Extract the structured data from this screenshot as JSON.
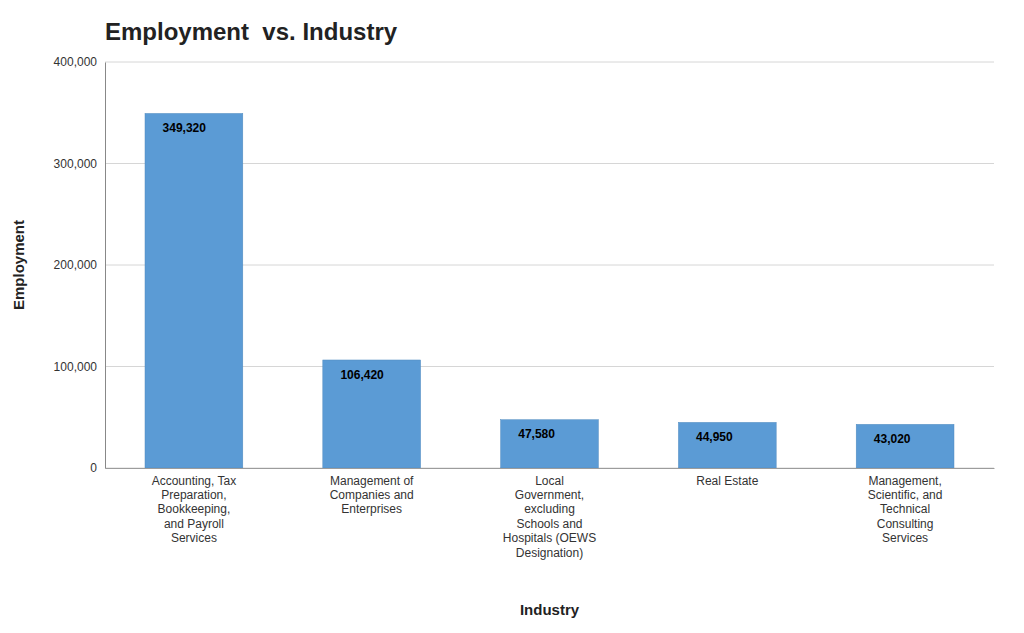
{
  "chart_data": {
    "type": "bar",
    "title": "Employment  vs. Industry",
    "x_label": "Industry",
    "y_label": "Employment",
    "categories": [
      "Accounting, Tax\nPreparation,\nBookkeeping,\nand Payroll\nServices",
      "Management of\nCompanies and\nEnterprises",
      "Local\nGovernment,\nexcluding\nSchools and\nHospitals (OEWS\nDesignation)",
      "Real Estate",
      "Management,\nScientific, and\nTechnical\nConsulting\nServices"
    ],
    "values": [
      349320,
      106420,
      47580,
      44950,
      43020
    ],
    "value_labels": [
      "349,320",
      "106,420",
      "47,580",
      "44,950",
      "43,020"
    ],
    "data_labels": true,
    "color": "#5B9BD5",
    "ylim": [
      0,
      400000
    ],
    "yticks": [
      0,
      {
        "value": 100000,
        "label": "100,000"
      },
      {
        "value": 200000,
        "label": "200,000"
      },
      {
        "value": 300000,
        "label": "300,000"
      },
      {
        "value": 400000,
        "label": "400,000"
      }
    ],
    "grid": true
  }
}
